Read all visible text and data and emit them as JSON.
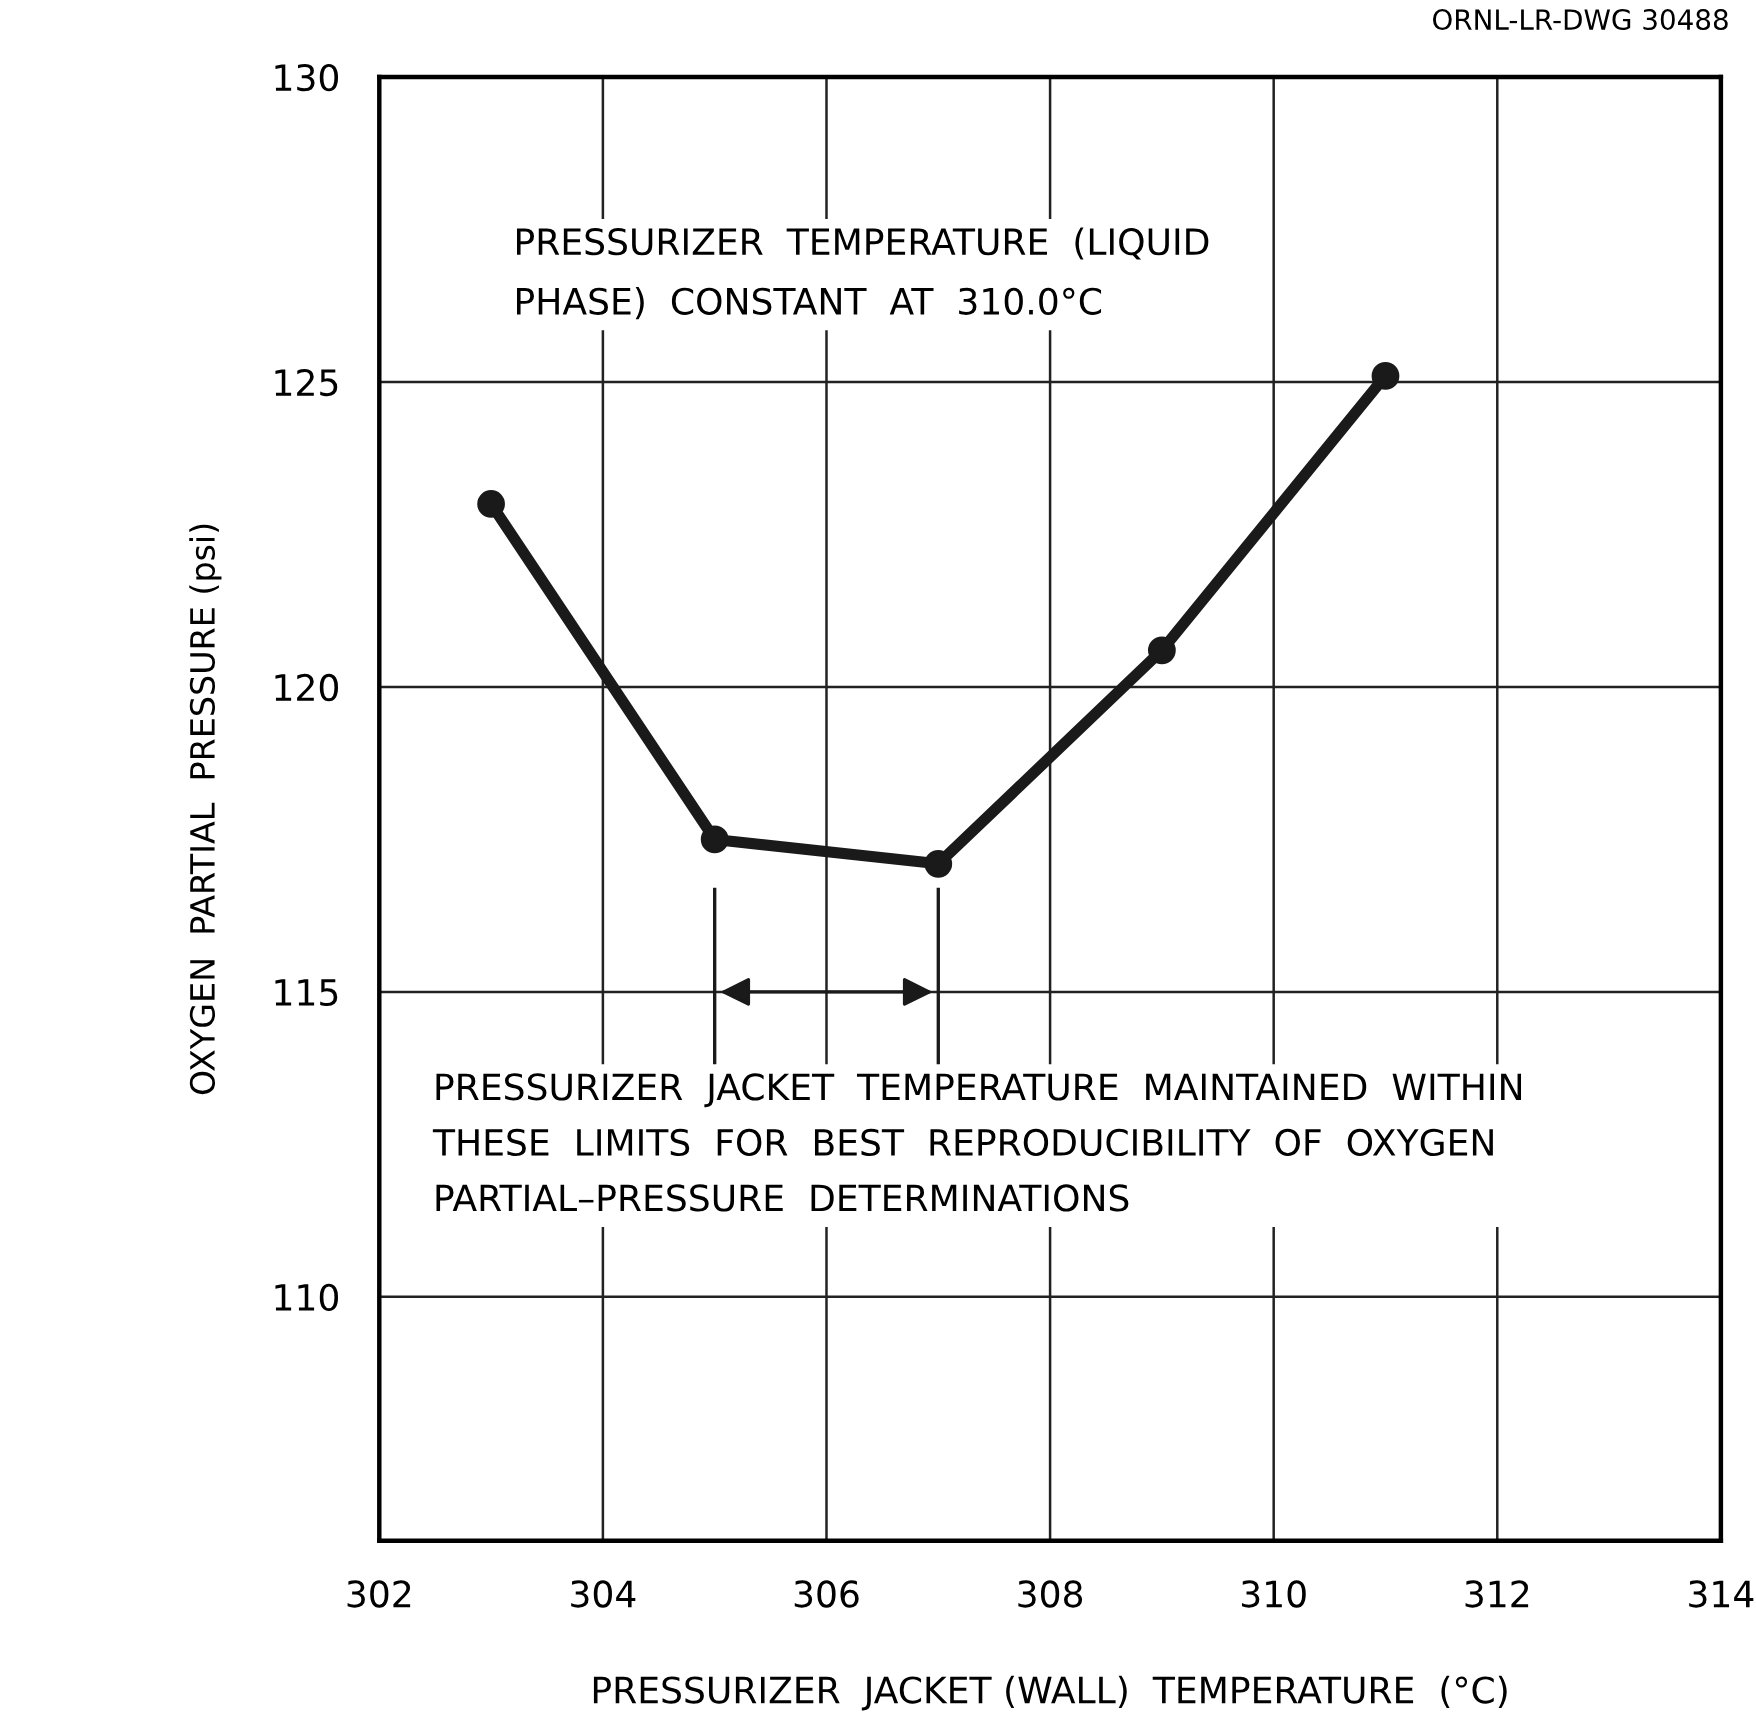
{
  "chart_data": {
    "type": "line",
    "xlabel": "PRESSURIZER  JACKET (WALL)  TEMPERATURE  (°C)",
    "ylabel": "OXYGEN  PARTIAL  PRESSURE (psi)",
    "x": [
      303,
      305,
      307,
      309,
      311
    ],
    "series": [
      {
        "color": "#1a1a1a",
        "values": [
          123.0,
          117.5,
          117.1,
          120.6,
          125.1
        ]
      }
    ],
    "marker": "circle",
    "line_style": "solid",
    "xlim": [
      302,
      314
    ],
    "xticks": [
      302,
      304,
      306,
      308,
      310,
      312,
      314
    ],
    "ylim": [
      106,
      130
    ],
    "yticks": [
      110,
      115,
      120,
      125,
      130
    ],
    "grid": true,
    "annotations": [
      "PRESSURIZER  TEMPERATURE  (LIQUID\nPHASE)  CONSTANT  AT  310.0°C",
      "ORNL-LR-DWG 30488",
      "PRESSURIZER  JACKET  TEMPERATURE  MAINTAINED  WITHIN\nTHESE  LIMITS  FOR  BEST  REPRODUCIBILITY  OF  OXYGEN\nPARTIAL–PRESSURE  DETERMINATIONS"
    ]
  }
}
